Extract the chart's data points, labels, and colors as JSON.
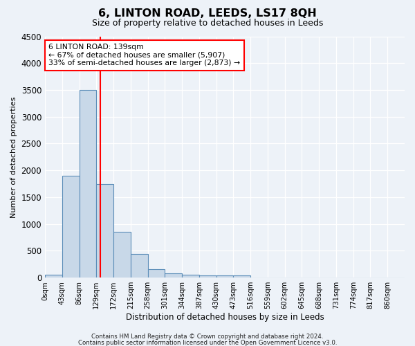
{
  "title": "6, LINTON ROAD, LEEDS, LS17 8QH",
  "subtitle": "Size of property relative to detached houses in Leeds",
  "xlabel": "Distribution of detached houses by size in Leeds",
  "ylabel": "Number of detached properties",
  "bar_color": "#c8d8e8",
  "bar_edge_color": "#5b8db8",
  "bin_labels": [
    "0sqm",
    "43sqm",
    "86sqm",
    "129sqm",
    "172sqm",
    "215sqm",
    "258sqm",
    "301sqm",
    "344sqm",
    "387sqm",
    "430sqm",
    "473sqm",
    "516sqm",
    "559sqm",
    "602sqm",
    "645sqm",
    "688sqm",
    "731sqm",
    "774sqm",
    "817sqm",
    "860sqm"
  ],
  "bar_values": [
    50,
    1900,
    3500,
    1750,
    850,
    440,
    160,
    80,
    55,
    40,
    35,
    35,
    0,
    0,
    0,
    0,
    0,
    0,
    0,
    0,
    0
  ],
  "red_line_x": 3.23,
  "annotation_line1": "6 LINTON ROAD: 139sqm",
  "annotation_line2": "← 67% of detached houses are smaller (5,907)",
  "annotation_line3": "33% of semi-detached houses are larger (2,873) →",
  "annotation_box_color": "white",
  "annotation_box_edge": "red",
  "ylim": [
    0,
    4500
  ],
  "yticks": [
    0,
    500,
    1000,
    1500,
    2000,
    2500,
    3000,
    3500,
    4000,
    4500
  ],
  "footer1": "Contains HM Land Registry data © Crown copyright and database right 2024.",
  "footer2": "Contains public sector information licensed under the Open Government Licence v3.0.",
  "background_color": "#edf2f8",
  "plot_bg_color": "#edf2f8"
}
